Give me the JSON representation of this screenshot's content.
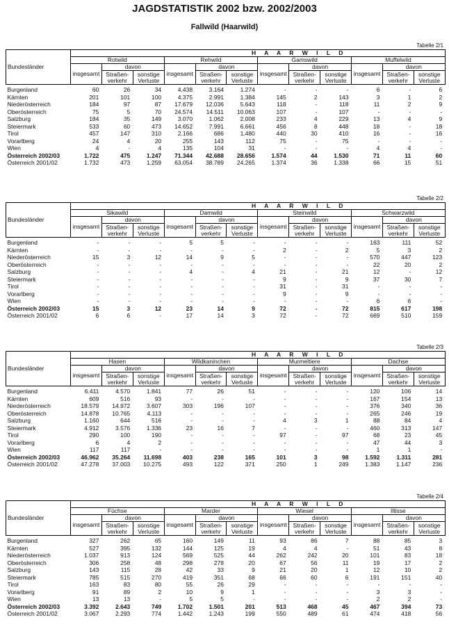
{
  "title": "JAGDSTATISTIK 2002 bzw. 2002/2003",
  "subtitle": "Fallwild (Haarwild)",
  "header": {
    "region_col": "Bundesländer",
    "category": "H A A R W I L D",
    "davon": "davon",
    "insgesamt": "insgesamt",
    "strassen_1": "Straßen-",
    "strassen_2": "verkehr",
    "sonstige_1": "sonstige",
    "sonstige_2": "Verluste"
  },
  "tables": [
    {
      "label": "Tabelle 2/1",
      "species": [
        "Rotwild",
        "Rehwild",
        "Gamswild",
        "Muffelwild"
      ],
      "rows": [
        {
          "name": "Burgenland",
          "values": [
            "60",
            "26",
            "34",
            "4.438",
            "3.164",
            "1.274",
            "-",
            "-",
            "-",
            "6",
            "-",
            "6"
          ]
        },
        {
          "name": "Kärnten",
          "values": [
            "201",
            "101",
            "100",
            "4.375",
            "2.991",
            "1.384",
            "145",
            "2",
            "143",
            "3",
            "1",
            "2"
          ]
        },
        {
          "name": "Niederösterreich",
          "values": [
            "184",
            "97",
            "87",
            "17.679",
            "12.036",
            "5.643",
            "118",
            "-",
            "118",
            "11",
            "2",
            "9"
          ]
        },
        {
          "name": "Oberösterreich",
          "values": [
            "75",
            "5",
            "70",
            "24.574",
            "14.511",
            "10.063",
            "107",
            "-",
            "107",
            "-",
            "-",
            "-"
          ]
        },
        {
          "name": "Salzburg",
          "values": [
            "184",
            "35",
            "149",
            "3.070",
            "1.062",
            "2.008",
            "233",
            "4",
            "229",
            "13",
            "4",
            "9"
          ]
        },
        {
          "name": "Steiermark",
          "values": [
            "533",
            "60",
            "473",
            "14.652",
            "7.991",
            "6.661",
            "456",
            "8",
            "448",
            "18",
            "-",
            "18"
          ]
        },
        {
          "name": "Tirol",
          "values": [
            "457",
            "147",
            "310",
            "2.166",
            "686",
            "1.480",
            "440",
            "30",
            "410",
            "16",
            "-",
            "16"
          ]
        },
        {
          "name": "Vorarlberg",
          "values": [
            "24",
            "4",
            "20",
            "255",
            "143",
            "112",
            "75",
            "-",
            "75",
            "-",
            "-",
            "-"
          ]
        },
        {
          "name": "Wien",
          "values": [
            "4",
            "-",
            "4",
            "135",
            "104",
            "31",
            "-",
            "-",
            "-",
            "4",
            "4",
            "-"
          ]
        },
        {
          "name": "Österreich 2002/03",
          "bold": true,
          "values": [
            "1.722",
            "475",
            "1.247",
            "71.344",
            "42.688",
            "28.656",
            "1.574",
            "44",
            "1.530",
            "71",
            "11",
            "60"
          ]
        },
        {
          "name": "Österreich 2001/02",
          "values": [
            "1.732",
            "473",
            "1.259",
            "63.054",
            "38.789",
            "24.265",
            "1.374",
            "36",
            "1.338",
            "66",
            "15",
            "51"
          ]
        }
      ]
    },
    {
      "label": "Tabelle 2/2",
      "species": [
        "Sikawild",
        "Damwild",
        "Steinwild",
        "Schwarzwild"
      ],
      "rows": [
        {
          "name": "Burgenland",
          "values": [
            "-",
            "-",
            "-",
            "5",
            "5",
            "-",
            "-",
            "-",
            "-",
            "163",
            "111",
            "52"
          ]
        },
        {
          "name": "Kärnten",
          "values": [
            "-",
            "-",
            "-",
            "-",
            "-",
            "-",
            "2",
            "-",
            "2",
            "5",
            "3",
            "2"
          ]
        },
        {
          "name": "Niederösterreich",
          "values": [
            "15",
            "3",
            "12",
            "14",
            "9",
            "5",
            "-",
            "-",
            "-",
            "570",
            "447",
            "123"
          ]
        },
        {
          "name": "Oberösterreich",
          "values": [
            "-",
            "-",
            "-",
            "-",
            "-",
            "-",
            "-",
            "-",
            "-",
            "22",
            "20",
            "2"
          ]
        },
        {
          "name": "Salzburg",
          "values": [
            "-",
            "-",
            "-",
            "4",
            "-",
            "4",
            "21",
            "-",
            "21",
            "12",
            "-",
            "12"
          ]
        },
        {
          "name": "Steiermark",
          "values": [
            "-",
            "-",
            "-",
            "-",
            "-",
            "-",
            "9",
            "-",
            "9",
            "37",
            "30",
            "7"
          ]
        },
        {
          "name": "Tirol",
          "values": [
            "-",
            "-",
            "-",
            "-",
            "-",
            "-",
            "31",
            "-",
            "31",
            "-",
            "-",
            "-"
          ]
        },
        {
          "name": "Vorarlberg",
          "values": [
            "-",
            "-",
            "-",
            "-",
            "-",
            "-",
            "9",
            "-",
            "9",
            "-",
            "-",
            "-"
          ]
        },
        {
          "name": "Wien",
          "values": [
            "-",
            "-",
            "-",
            "-",
            "-",
            "-",
            "-",
            "-",
            "-",
            "6",
            "6",
            "-"
          ]
        },
        {
          "name": "Österreich 2002/03",
          "bold": true,
          "values": [
            "15",
            "3",
            "12",
            "23",
            "14",
            "9",
            "72",
            "-",
            "72",
            "815",
            "617",
            "198"
          ]
        },
        {
          "name": "Österreich 2001/02",
          "values": [
            "6",
            "6",
            "-",
            "17",
            "14",
            "3",
            "72",
            "-",
            "72",
            "669",
            "510",
            "159"
          ]
        }
      ]
    },
    {
      "label": "Tabelle 2/3",
      "species": [
        "Hasen",
        "Wildkaninchen",
        "Murmeltiere",
        "Dachse"
      ],
      "rows": [
        {
          "name": "Burgenland",
          "values": [
            "6.411",
            "4.570",
            "1.841",
            "77",
            "26",
            "51",
            "-",
            "-",
            "-",
            "120",
            "106",
            "14"
          ]
        },
        {
          "name": "Kärnten",
          "values": [
            "609",
            "516",
            "93",
            "-",
            "-",
            "-",
            "-",
            "-",
            "-",
            "167",
            "154",
            "13"
          ]
        },
        {
          "name": "Niederösterreich",
          "values": [
            "18.579",
            "14.972",
            "3.607",
            "303",
            "196",
            "107",
            "-",
            "-",
            "-",
            "376",
            "340",
            "36"
          ]
        },
        {
          "name": "Oberösterreich",
          "values": [
            "14.878",
            "10.765",
            "4.113",
            "-",
            "-",
            "-",
            "-",
            "-",
            "-",
            "265",
            "246",
            "19"
          ]
        },
        {
          "name": "Salzburg",
          "values": [
            "1.160",
            "644",
            "516",
            "-",
            "-",
            "-",
            "4",
            "3",
            "1",
            "88",
            "84",
            "4"
          ]
        },
        {
          "name": "Steiermark",
          "values": [
            "4.912",
            "3.576",
            "1.336",
            "23",
            "16",
            "7",
            "-",
            "-",
            "-",
            "460",
            "313",
            "147"
          ]
        },
        {
          "name": "Tirol",
          "values": [
            "290",
            "100",
            "190",
            "-",
            "-",
            "-",
            "97",
            "-",
            "97",
            "68",
            "23",
            "45"
          ]
        },
        {
          "name": "Vorarlberg",
          "values": [
            "6",
            "4",
            "2",
            "-",
            "-",
            "-",
            "-",
            "-",
            "-",
            "47",
            "44",
            "3"
          ]
        },
        {
          "name": "Wien",
          "values": [
            "117",
            "117",
            "-",
            "-",
            "-",
            "-",
            "-",
            "-",
            "-",
            "1",
            "1",
            "-"
          ]
        },
        {
          "name": "Österreich 2002/03",
          "bold": true,
          "values": [
            "46.962",
            "35.264",
            "11.698",
            "403",
            "238",
            "165",
            "101",
            "3",
            "98",
            "1.592",
            "1.311",
            "281"
          ]
        },
        {
          "name": "Österreich 2001/02",
          "values": [
            "47.278",
            "37.003",
            "10.275",
            "493",
            "122",
            "371",
            "250",
            "1",
            "249",
            "1.383",
            "1.147",
            "236"
          ]
        }
      ]
    },
    {
      "label": "Tabelle 2/4",
      "species": [
        "Füchse",
        "Marder",
        "Wiesel",
        "Iltisse"
      ],
      "rows": [
        {
          "name": "Burgenland",
          "values": [
            "327",
            "262",
            "65",
            "160",
            "149",
            "11",
            "93",
            "86",
            "7",
            "88",
            "85",
            "3"
          ]
        },
        {
          "name": "Kärnten",
          "values": [
            "527",
            "395",
            "132",
            "144",
            "125",
            "19",
            "4",
            "4",
            "-",
            "51",
            "43",
            "8"
          ]
        },
        {
          "name": "Niederösterreich",
          "values": [
            "1.037",
            "913",
            "124",
            "569",
            "525",
            "44",
            "262",
            "242",
            "20",
            "101",
            "83",
            "18"
          ]
        },
        {
          "name": "Oberösterreich",
          "values": [
            "306",
            "258",
            "48",
            "298",
            "278",
            "20",
            "67",
            "56",
            "11",
            "19",
            "17",
            "2"
          ]
        },
        {
          "name": "Salzburg",
          "values": [
            "143",
            "115",
            "28",
            "42",
            "33",
            "9",
            "21",
            "20",
            "1",
            "12",
            "10",
            "2"
          ]
        },
        {
          "name": "Steiermark",
          "values": [
            "785",
            "515",
            "270",
            "419",
            "351",
            "68",
            "66",
            "60",
            "6",
            "191",
            "151",
            "40"
          ]
        },
        {
          "name": "Tirol",
          "values": [
            "163",
            "83",
            "80",
            "55",
            "26",
            "29",
            "-",
            "-",
            "-",
            "-",
            "-",
            "-"
          ]
        },
        {
          "name": "Vorarlberg",
          "values": [
            "91",
            "89",
            "2",
            "10",
            "9",
            "1",
            "-",
            "-",
            "-",
            "3",
            "3",
            "-"
          ]
        },
        {
          "name": "Wien",
          "values": [
            "13",
            "13",
            "-",
            "5",
            "5",
            "-",
            "-",
            "-",
            "-",
            "2",
            "2",
            "-"
          ]
        },
        {
          "name": "Österreich 2002/03",
          "bold": true,
          "values": [
            "3.392",
            "2.643",
            "749",
            "1.702",
            "1.501",
            "201",
            "513",
            "468",
            "45",
            "467",
            "394",
            "73"
          ]
        },
        {
          "name": "Österreich 2001/02",
          "values": [
            "3.067",
            "2.293",
            "774",
            "1.442",
            "1.243",
            "199",
            "550",
            "489",
            "61",
            "474",
            "418",
            "56"
          ]
        }
      ]
    }
  ]
}
